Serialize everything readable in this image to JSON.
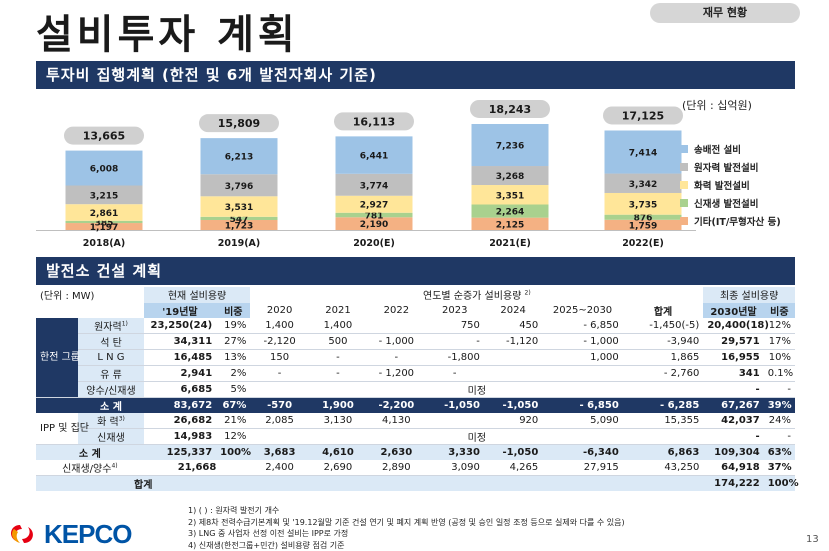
{
  "title": "설비투자 계획",
  "badge": "재무 현황",
  "section1": {
    "title": "투자비 집행계획 (한전 및 6개 발전자회사 기준)",
    "unit": "(단위 : 십억원)"
  },
  "chart_data": {
    "type": "bar",
    "stacked": true,
    "categories": [
      "2018(A)",
      "2019(A)",
      "2020(E)",
      "2021(E)",
      "2022(E)"
    ],
    "totals": [
      "13,665",
      "15,809",
      "16,113",
      "18,243",
      "17,125"
    ],
    "series": [
      {
        "name": "기타(IT/무형자산 등)",
        "color": "#f4b183",
        "values": [
          1197,
          1723,
          2190,
          2125,
          1759
        ],
        "labels": [
          "1,197",
          "1,723",
          "2,190",
          "2,125",
          "1,759"
        ]
      },
      {
        "name": "신재생 발전설비",
        "color": "#a9d18e",
        "values": [
          385,
          547,
          781,
          2264,
          876
        ],
        "labels": [
          "385",
          "547",
          "781",
          "2,264",
          "876"
        ]
      },
      {
        "name": "화력 발전설비",
        "color": "#ffe699",
        "values": [
          2861,
          3531,
          2927,
          3351,
          3735
        ],
        "labels": [
          "2,861",
          "3,531",
          "2,927",
          "3,351",
          "3,735"
        ]
      },
      {
        "name": "원자력 발전설비",
        "color": "#bfbfbf",
        "values": [
          3215,
          3796,
          3774,
          3268,
          3342
        ],
        "labels": [
          "3,215",
          "3,796",
          "3,774",
          "3,268",
          "3,342"
        ]
      },
      {
        "name": "송배전 설비",
        "color": "#9dc3e6",
        "values": [
          6008,
          6213,
          6441,
          7236,
          7414
        ],
        "labels": [
          "6,008",
          "6,213",
          "6,441",
          "7,236",
          "7,414"
        ]
      }
    ]
  },
  "legend_order": [
    {
      "name": "송배전 설비",
      "color": "#9dc3e6"
    },
    {
      "name": "원자력 발전설비",
      "color": "#bfbfbf"
    },
    {
      "name": "화력 발전설비",
      "color": "#ffe699"
    },
    {
      "name": "신재생 발전설비",
      "color": "#a9d18e"
    },
    {
      "name": "기타(IT/무형자산 등)",
      "color": "#f4b183"
    }
  ],
  "section2": {
    "title": "발전소 건설 계획"
  },
  "table": {
    "unit": "(단위 : MW)",
    "h_current": "현재 설비용량",
    "h_increase": "연도별 순증가 설비용량",
    "h_increase_sup": "2)",
    "h_final": "최종 설비용량",
    "sub_headers": [
      "'19년말",
      "비중",
      "2020",
      "2021",
      "2022",
      "2023",
      "2024",
      "2025~2030",
      "합계",
      "2030년말",
      "비중"
    ],
    "group_kepco": "한전 그룹",
    "group_ipp": "IPP 및 집단",
    "kepco_rows": [
      {
        "name": "원자력",
        "sup": "1)",
        "cap": "23,250(24)",
        "share": "19%",
        "y2020": "1,400",
        "y2021": "1,400",
        "y2022": "",
        "y2023": "750",
        "y2024": "450",
        "y2530": "- 6,850",
        "sum": "-1,450(-5)",
        "final": "20,400(18)",
        "fshare": "12%"
      },
      {
        "name": "석 탄",
        "sup": "",
        "cap": "34,311",
        "share": "27%",
        "y2020": "-2,120",
        "y2021": "500",
        "y2022": "- 1,000",
        "y2023": "-",
        "y2024": "-1,120",
        "y2530": "- 1,000",
        "sum": "-3,940",
        "final": "29,571",
        "fshare": "17%"
      },
      {
        "name": "L N G",
        "sup": "",
        "cap": "16,485",
        "share": "13%",
        "y2020": "150",
        "y2021": "-",
        "y2022": "-",
        "y2023": "-1,800",
        "y2024": "",
        "y2530": "1,000",
        "sum": "1,865",
        "final": "16,955",
        "fshare": "10%"
      },
      {
        "name": "유 류",
        "sup": "",
        "cap": "2,941",
        "share": "2%",
        "y2020": "-",
        "y2021": "-",
        "y2022": "- 1,200",
        "y2023": "-",
        "y2024": "",
        "y2530": "",
        "sum": "- 2,760",
        "final": "341",
        "fshare": "0.1%"
      },
      {
        "name": "양수/신재생",
        "sup": "",
        "cap": "6,685",
        "share": "5%",
        "merged": "미정",
        "final": "-",
        "fshare": "-"
      }
    ],
    "kepco_subtotal": {
      "name": "소 계",
      "cap": "83,672",
      "share": "67%",
      "y2020": "-570",
      "y2021": "1,900",
      "y2022": "-2,200",
      "y2023": "-1,050",
      "y2024": "-1,050",
      "y2530": "- 6,850",
      "sum": "- 6,285",
      "final": "67,267",
      "fshare": "39%"
    },
    "ipp_rows": [
      {
        "name": "화 력",
        "sup": "3)",
        "cap": "26,682",
        "share": "21%",
        "y2020": "2,085",
        "y2021": "3,130",
        "y2022": "4,130",
        "y2023": "",
        "y2024": "920",
        "y2530": "5,090",
        "sum": "15,355",
        "final": "42,037",
        "fshare": "24%"
      },
      {
        "name": "신재생",
        "sup": "",
        "cap": "14,983",
        "share": "12%",
        "merged": "미정",
        "final": "-",
        "fshare": "-"
      }
    ],
    "subtotal": {
      "name": "소 계",
      "cap": "125,337",
      "share": "100%",
      "y2020": "3,683",
      "y2021": "4,610",
      "y2022": "2,630",
      "y2023": "3,330",
      "y2024": "-1,050",
      "y2530": "-6,340",
      "sum": "6,863",
      "final": "109,304",
      "fshare": "63%"
    },
    "renew_row": {
      "name": "신재생/양수",
      "sup": "4)",
      "cap": "21,668",
      "y2020": "2,400",
      "y2021": "2,690",
      "y2022": "2,890",
      "y2023": "3,090",
      "y2024": "4,265",
      "y2530": "27,915",
      "sum": "43,250",
      "final": "64,918",
      "fshare": "37%"
    },
    "grand_total": {
      "name": "합계",
      "final": "174,222",
      "fshare": "100%"
    }
  },
  "footnotes": [
    "1) ( ) : 원자력 발전기 개수",
    "2) 제8차 전력수급기본계획 및 '19.12월말 기준 건설 연기 및 폐지 계획 반영 (공정 및 승인 일정 조정 등으로 실제와 다를 수 있음)",
    "3) LNG 중 사업자 선정 이전 설비는 IPP로 가정",
    "4) 신재생(한전그룹+민간) 설비용량 점검 기준"
  ],
  "logo_text": "KEPCO",
  "page_number": "13"
}
